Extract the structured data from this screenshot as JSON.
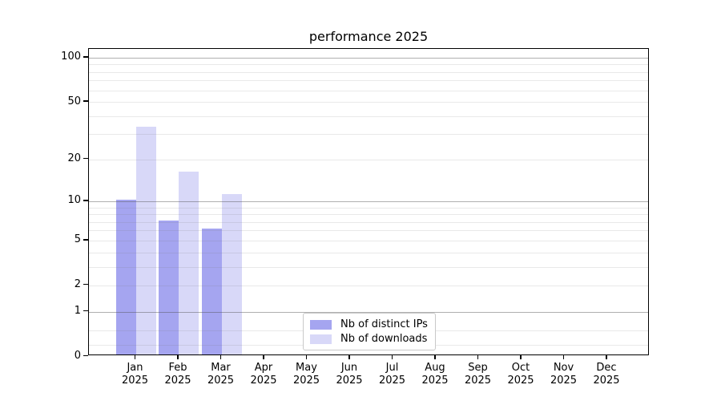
{
  "chart_data": {
    "type": "bar",
    "title": "performance 2025",
    "x_months": [
      "Jan",
      "Feb",
      "Mar",
      "Apr",
      "May",
      "Jun",
      "Jul",
      "Aug",
      "Sep",
      "Oct",
      "Nov",
      "Dec"
    ],
    "x_year": "2025",
    "series": [
      {
        "name": "Nb of distinct IPs",
        "color": "#a5a5f0",
        "values": [
          10,
          7,
          6,
          0,
          0,
          0,
          0,
          0,
          0,
          0,
          0,
          0
        ]
      },
      {
        "name": "Nb of downloads",
        "color": "#d8d8f8",
        "values": [
          33,
          16,
          11,
          0,
          0,
          0,
          0,
          0,
          0,
          0,
          0,
          0
        ]
      }
    ],
    "yscale": "log1p",
    "ylim": [
      0,
      115
    ],
    "yticks": [
      0,
      1,
      2,
      5,
      10,
      20,
      50,
      100
    ],
    "grid_major": [
      1,
      10,
      100
    ],
    "grid_minor": [
      0.2,
      0.5,
      2,
      3,
      4,
      5,
      6,
      7,
      8,
      9,
      20,
      30,
      40,
      50,
      60,
      70,
      80,
      90
    ],
    "legend_position": "lower center",
    "xlabel": "",
    "ylabel": ""
  },
  "colors": {
    "background": "#ffffff",
    "spine": "#000000",
    "grid_major": "#b2b2b2",
    "grid_minor": "#ececec",
    "text": "#000000"
  }
}
